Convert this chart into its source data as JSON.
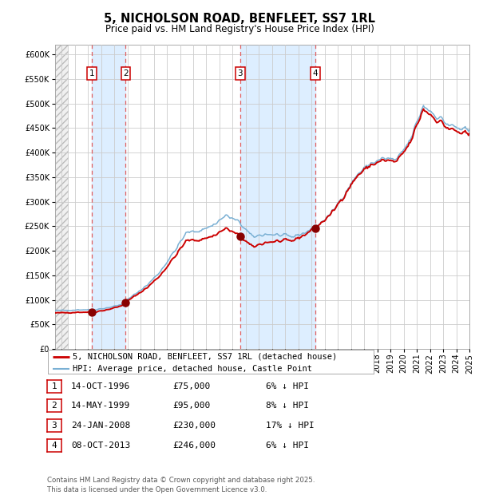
{
  "title": "5, NICHOLSON ROAD, BENFLEET, SS7 1RL",
  "subtitle": "Price paid vs. HM Land Registry's House Price Index (HPI)",
  "legend_property": "5, NICHOLSON ROAD, BENFLEET, SS7 1RL (detached house)",
  "legend_hpi": "HPI: Average price, detached house, Castle Point",
  "footer": "Contains HM Land Registry data © Crown copyright and database right 2025.\nThis data is licensed under the Open Government Licence v3.0.",
  "transactions": [
    {
      "num": 1,
      "date": "14-OCT-1996",
      "price": 75000,
      "pct": "6%",
      "dir": "↓",
      "year_x": 1996.79
    },
    {
      "num": 2,
      "date": "14-MAY-1999",
      "price": 95000,
      "pct": "8%",
      "dir": "↓",
      "year_x": 1999.37
    },
    {
      "num": 3,
      "date": "24-JAN-2008",
      "price": 230000,
      "pct": "17%",
      "dir": "↓",
      "year_x": 2008.07
    },
    {
      "num": 4,
      "date": "08-OCT-2013",
      "price": 246000,
      "pct": "6%",
      "dir": "↓",
      "year_x": 2013.77
    }
  ],
  "ylim": [
    0,
    620000
  ],
  "xlim_start": 1994.0,
  "xlim_end": 2025.5,
  "property_color": "#cc0000",
  "hpi_color": "#7ab0d4",
  "transaction_marker_color": "#880000",
  "dashed_line_color": "#e06060",
  "shade_color": "#ddeeff",
  "background_color": "#ffffff",
  "grid_color": "#cccccc",
  "title_fontsize": 10.5,
  "subtitle_fontsize": 8.5,
  "tick_fontsize": 7,
  "legend_fontsize": 7.5,
  "table_fontsize": 8
}
